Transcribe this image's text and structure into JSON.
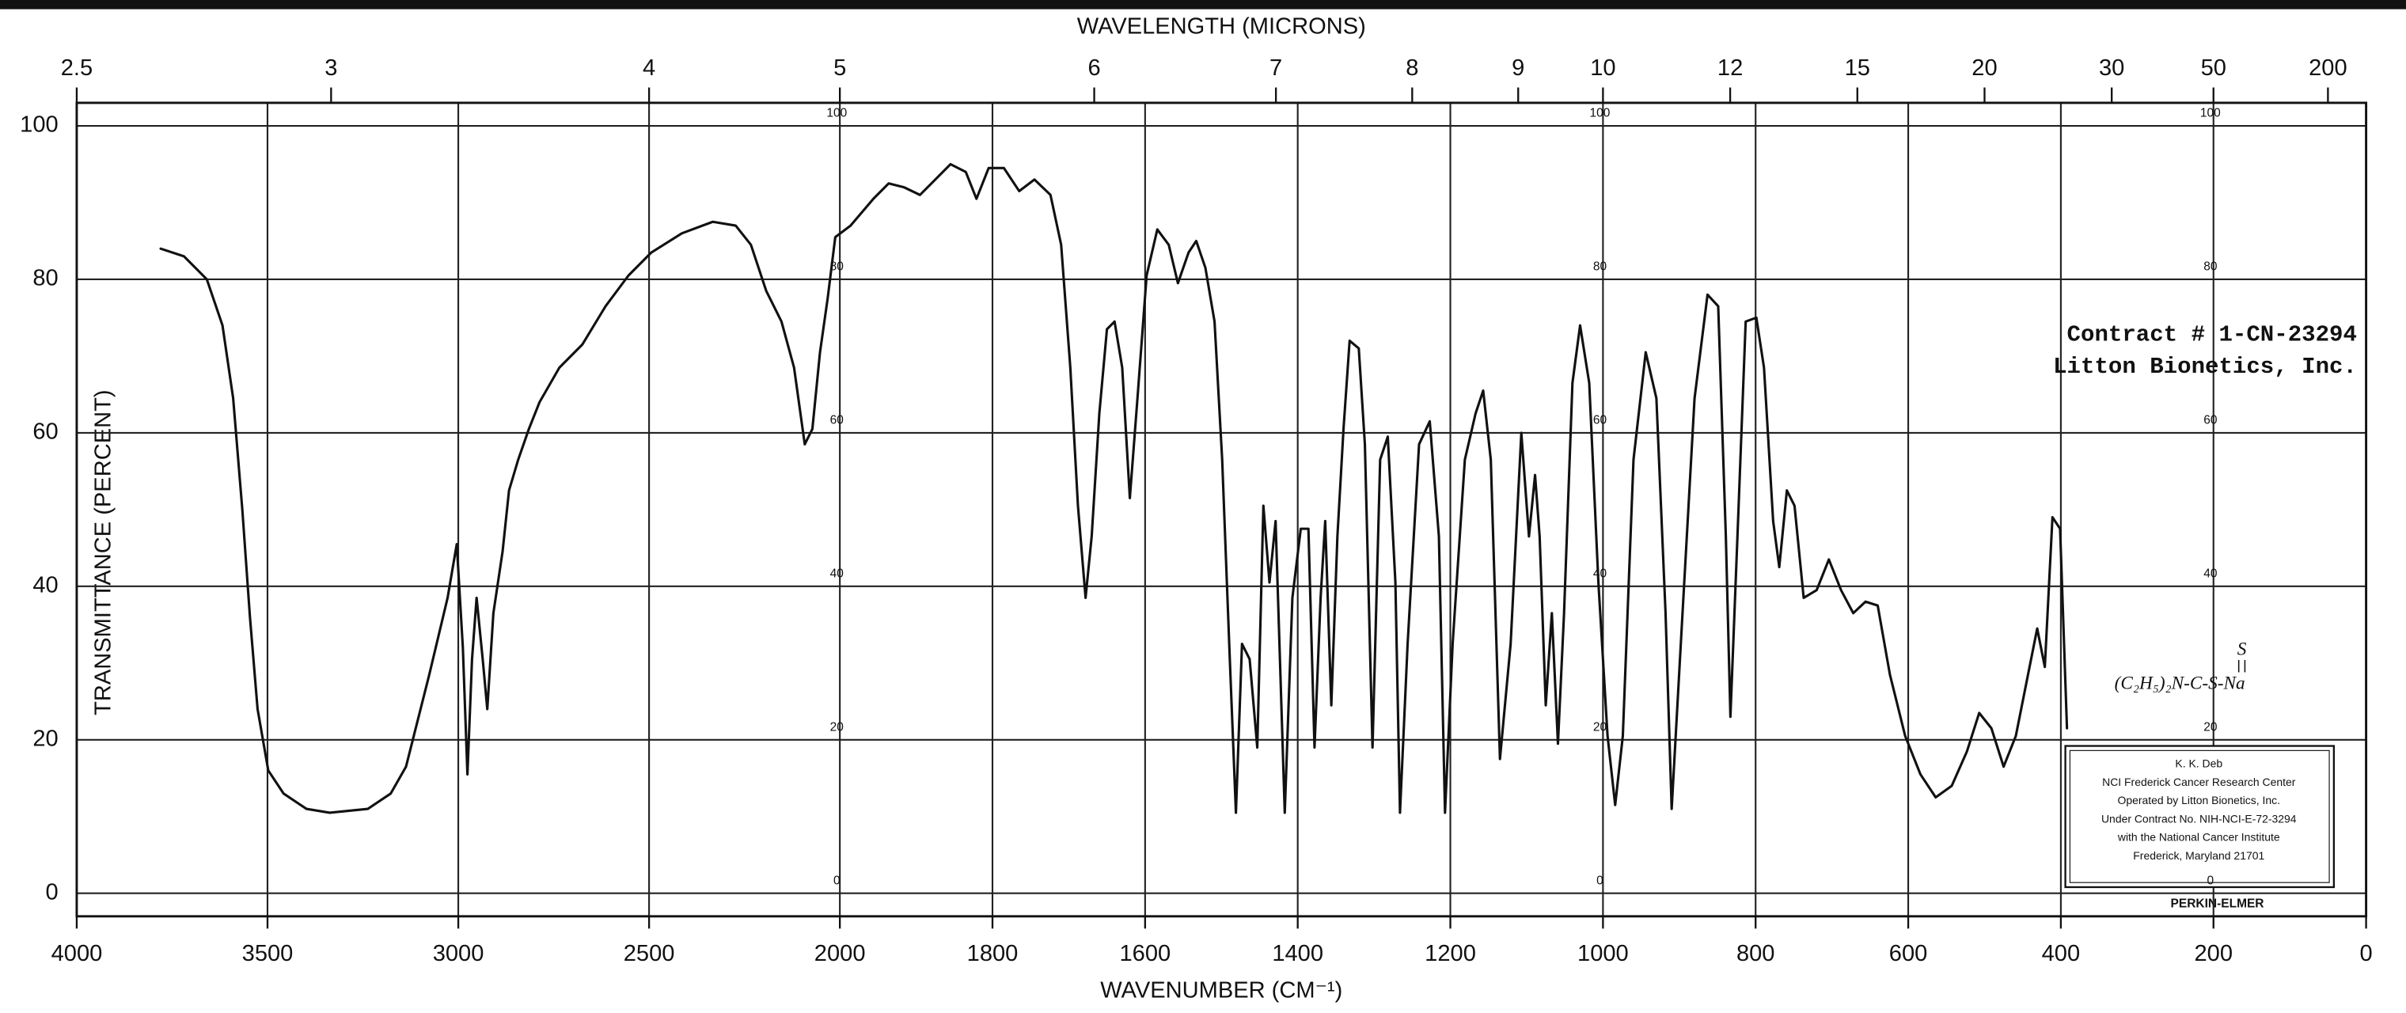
{
  "chart_data": {
    "type": "line",
    "title": "WAVELENGTH (MICRONS)",
    "x_label": "WAVENUMBER (CM⁻¹)",
    "y_label": "TRANSMITTANCE (PERCENT)",
    "xlim": [
      4000,
      0
    ],
    "x_scale_break": 2000,
    "xticks": [
      4000,
      3500,
      3000,
      2500,
      2000,
      1800,
      1600,
      1400,
      1200,
      1000,
      800,
      600,
      400,
      200,
      0
    ],
    "x2ticks": [
      2.5,
      3,
      4,
      5,
      6,
      7,
      8,
      9,
      10,
      12,
      15,
      20,
      30,
      50,
      200
    ],
    "ylim": [
      -3,
      103
    ],
    "yticks": [
      0,
      20,
      40,
      60,
      80,
      100
    ],
    "inner_labels": [
      100,
      80,
      60,
      40,
      20,
      0
    ],
    "grid": true,
    "color": "#111111",
    "x": [
      3780,
      3719,
      3659,
      3618,
      3590,
      3566,
      3546,
      3526,
      3498,
      3458,
      3398,
      3337,
      3237,
      3177,
      3137,
      3076,
      3028,
      3004,
      2988,
      2976,
      2964,
      2952,
      2936,
      2924,
      2908,
      2884,
      2867,
      2843,
      2815,
      2787,
      2735,
      2675,
      2614,
      2554,
      2494,
      2414,
      2333,
      2273,
      2233,
      2193,
      2153,
      2120,
      2092,
      2072,
      2052,
      2032,
      2012,
      1986,
      1956,
      1936,
      1916,
      1895,
      1875,
      1855,
      1835,
      1821,
      1805,
      1785,
      1765,
      1745,
      1724,
      1710,
      1698,
      1688,
      1678,
      1670,
      1660,
      1650,
      1640,
      1630,
      1620,
      1610,
      1598,
      1584,
      1569,
      1557,
      1543,
      1533,
      1521,
      1509,
      1499,
      1489,
      1481,
      1473,
      1463,
      1453,
      1445,
      1437,
      1429,
      1417,
      1407,
      1396,
      1386,
      1378,
      1370,
      1364,
      1356,
      1348,
      1340,
      1332,
      1320,
      1312,
      1302,
      1292,
      1282,
      1272,
      1266,
      1256,
      1241,
      1227,
      1215,
      1207,
      1197,
      1181,
      1167,
      1157,
      1147,
      1135,
      1121,
      1107,
      1097,
      1089,
      1083,
      1075,
      1067,
      1059,
      1051,
      1040,
      1030,
      1018,
      1006,
      994,
      984,
      974,
      960,
      944,
      930,
      918,
      910,
      898,
      880,
      863,
      849,
      839,
      833,
      823,
      813,
      799,
      789,
      777,
      769,
      759,
      749,
      737,
      720,
      704,
      688,
      672,
      656,
      640,
      624,
      604,
      584,
      564,
      543,
      523,
      507,
      491,
      475,
      459,
      443,
      431,
      421,
      411,
      401,
      392
    ],
    "values": [
      84,
      83,
      80,
      74,
      64.5,
      50,
      36,
      24,
      16,
      13,
      11,
      10.5,
      11,
      13,
      16.5,
      28.5,
      38.5,
      45.5,
      32,
      15.5,
      30.5,
      38.5,
      30.5,
      24,
      36.5,
      44.5,
      52.5,
      56.5,
      60.5,
      64,
      68.5,
      71.5,
      76.5,
      80.5,
      83.5,
      86,
      87.5,
      87,
      84.5,
      78.5,
      74.5,
      68.5,
      58.5,
      60.5,
      70.5,
      77.5,
      85.5,
      87,
      90.5,
      92.5,
      92,
      91,
      93,
      95,
      94,
      90.5,
      94.5,
      94.5,
      91.5,
      93,
      91,
      84.5,
      68.5,
      50.5,
      38.5,
      46.5,
      62.5,
      73.5,
      74.5,
      68.5,
      51.5,
      64.5,
      80.5,
      86.5,
      84.5,
      79.5,
      83.5,
      85,
      81.5,
      74.5,
      56.5,
      30.5,
      10.5,
      32.5,
      30.5,
      19,
      50.5,
      40.5,
      48.5,
      10.5,
      38.5,
      47.5,
      47.5,
      19,
      38.5,
      48.5,
      24.5,
      46.5,
      60.5,
      72,
      71,
      58.5,
      19,
      56.5,
      59.5,
      40.5,
      10.5,
      32.5,
      58.5,
      61.5,
      46.5,
      10.5,
      32.5,
      56.5,
      62.5,
      65.5,
      56.5,
      17.5,
      32.5,
      60,
      46.5,
      54.5,
      46.5,
      24.5,
      36.5,
      19.5,
      36.5,
      66.5,
      74,
      66.5,
      40.5,
      20.5,
      11.5,
      20.5,
      56.5,
      70.5,
      64.5,
      36.5,
      11,
      32.5,
      64.5,
      78,
      76.5,
      46.5,
      23,
      48.5,
      74.5,
      75,
      68.5,
      48.5,
      42.5,
      52.5,
      50.5,
      38.5,
      39.5,
      43.5,
      39.5,
      36.5,
      38,
      37.5,
      28.5,
      20.5,
      15.5,
      12.5,
      14,
      18.5,
      23.5,
      21.5,
      16.5,
      20.5,
      28.5,
      34.5,
      29.5,
      49,
      47.5,
      21.5
    ],
    "annotations": {
      "contract": "Contract # 1-CN-23294",
      "company": "Litton Bionetics, Inc.",
      "formula": "(C₂H₅)₂N-C-S-Na",
      "formula_top": "S",
      "box": [
        "K. K. Deb",
        "NCI Frederick Cancer Research Center",
        "Operated by Litton Bionetics, Inc.",
        "Under Contract No. NIH-NCI-E-72-3294",
        "with the National Cancer Institute",
        "Frederick, Maryland 21701"
      ],
      "maker": "PERKIN-ELMER"
    }
  }
}
